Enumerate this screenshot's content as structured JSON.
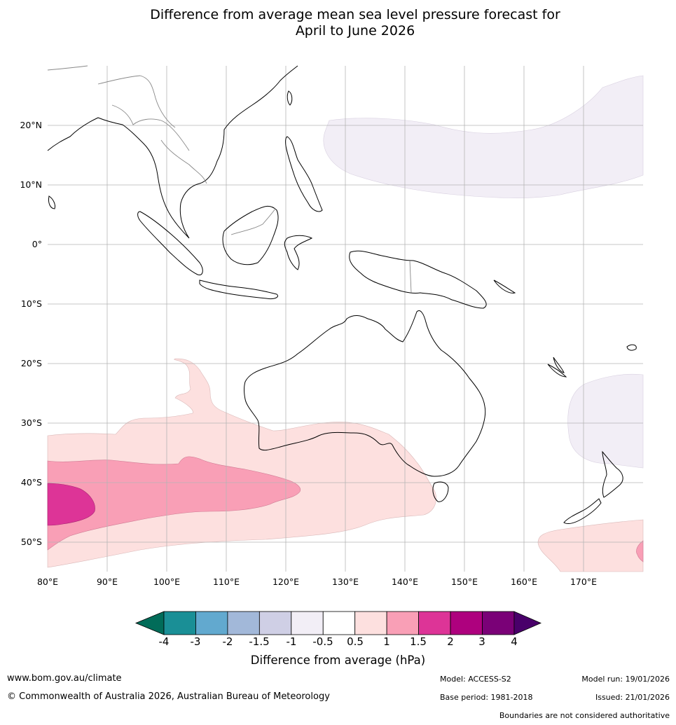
{
  "title": {
    "line1": "Difference from average mean sea level pressure forecast for",
    "line2": "April to June 2026"
  },
  "map": {
    "lat_labels": [
      "20°N",
      "10°N",
      "0°",
      "10°S",
      "20°S",
      "30°S",
      "40°S",
      "50°S"
    ],
    "lon_labels": [
      "80°E",
      "90°E",
      "100°E",
      "110°E",
      "120°E",
      "130°E",
      "140°E",
      "150°E",
      "160°E",
      "170°E"
    ],
    "extent": {
      "lon_min": 80,
      "lon_max": 180,
      "lat_min": -55,
      "lat_max": 30
    }
  },
  "colorbar": {
    "ticks": [
      "-4",
      "-3",
      "-2",
      "-1.5",
      "-1",
      "-0.5",
      "0.5",
      "1",
      "1.5",
      "2",
      "3",
      "4"
    ],
    "colors": [
      "#1a8f96",
      "#62a9cf",
      "#a2b8d9",
      "#cfcfe5",
      "#f2eef6",
      "#ffffff",
      "#fde0df",
      "#f99fb6",
      "#dd3497",
      "#ae017e",
      "#7a0177"
    ],
    "low_extension_color": "#016c59",
    "high_extension_color": "#49006a",
    "title": "Difference from average (hPa)"
  },
  "footer": {
    "website": "www.bom.gov.au/climate",
    "copyright": "© Commonwealth of Australia 2026, Australian Bureau of Meteorology",
    "model": "Model: ACCESS-S2",
    "base_period": "Base period: 1981-2018",
    "model_run": "Model run: 19/01/2026",
    "issued": "Issued: 21/01/2026",
    "disclaimer": "Boundaries are not considered authoritative"
  }
}
